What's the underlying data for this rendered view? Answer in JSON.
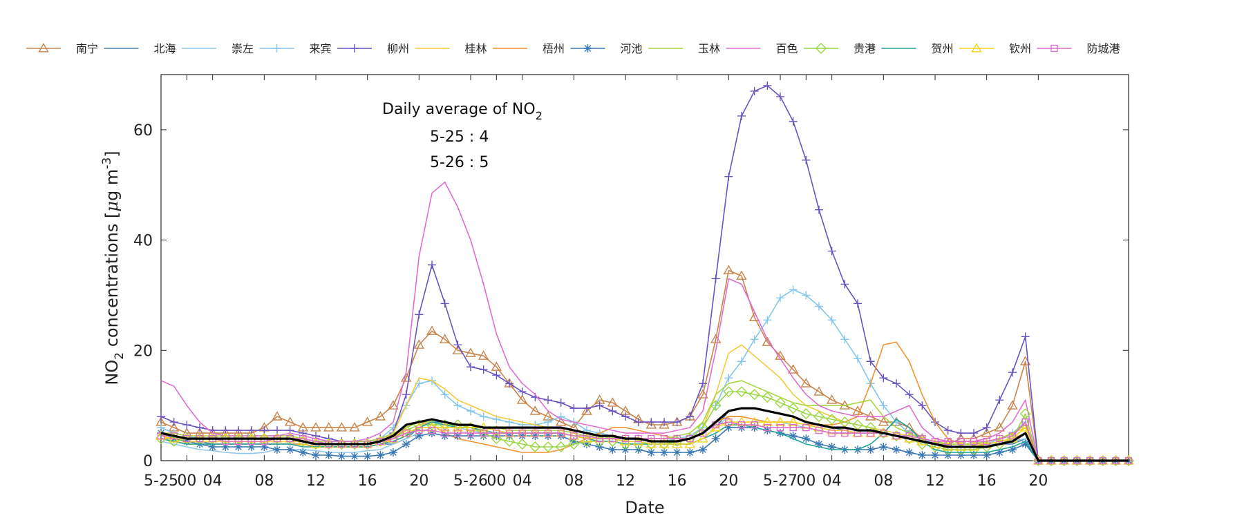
{
  "chart_data": {
    "type": "line",
    "title": "",
    "xlabel": "Date",
    "ylabel_main": "NO",
    "ylabel_sub": "2",
    "ylabel_rest": " concentrations [",
    "ylabel_mu": "μ",
    "ylabel_unit": "g m",
    "ylabel_sup": "-3",
    "ylabel_close": "]",
    "ylim": [
      0,
      70
    ],
    "yticks": [
      0,
      20,
      40,
      60
    ],
    "xlim": [
      0,
      75
    ],
    "xticks": [
      {
        "x": 0,
        "label": "5-25"
      },
      {
        "x": 2,
        "label": "00"
      },
      {
        "x": 4,
        "label": "04"
      },
      {
        "x": 8,
        "label": "08"
      },
      {
        "x": 12,
        "label": "12"
      },
      {
        "x": 16,
        "label": "16"
      },
      {
        "x": 20,
        "label": "20"
      },
      {
        "x": 24,
        "label": "5-26"
      },
      {
        "x": 26,
        "label": "00"
      },
      {
        "x": 28,
        "label": "04"
      },
      {
        "x": 32,
        "label": "08"
      },
      {
        "x": 36,
        "label": "12"
      },
      {
        "x": 40,
        "label": "16"
      },
      {
        "x": 44,
        "label": "20"
      },
      {
        "x": 48,
        "label": "5-27"
      },
      {
        "x": 50,
        "label": "00"
      },
      {
        "x": 52,
        "label": "04"
      },
      {
        "x": 56,
        "label": "08"
      },
      {
        "x": 60,
        "label": "12"
      },
      {
        "x": 64,
        "label": "16"
      },
      {
        "x": 68,
        "label": "20"
      }
    ],
    "annotation": {
      "line1_main": "Daily average of NO",
      "line1_sub": "2",
      "line2": "5-25 : 4",
      "line3": "5-26 : 5",
      "x": 23.5,
      "y": 63
    },
    "series": [
      {
        "name": "南宁",
        "color": "#c8844a",
        "marker": "triangle",
        "values": [
          7,
          6,
          5,
          5,
          5,
          5,
          5,
          5,
          6,
          8,
          7,
          6,
          6,
          6,
          6,
          6,
          7,
          8,
          10,
          15,
          21,
          23.5,
          22,
          20,
          19.5,
          19,
          17,
          14,
          11,
          9,
          8,
          7,
          6,
          9,
          11,
          10.5,
          9,
          7.5,
          6.5,
          6.5,
          7,
          8,
          12,
          22,
          34.5,
          33.5,
          26,
          21.5,
          19,
          16.5,
          14,
          12.5,
          11,
          10,
          9,
          8,
          7,
          7,
          6,
          4,
          3,
          3,
          4,
          4,
          5,
          6,
          10,
          18,
          0,
          0,
          0,
          0,
          0,
          0,
          0,
          0
        ]
      },
      {
        "name": "北海",
        "color": "#3a7fb0",
        "marker": "none",
        "values": [
          4,
          4,
          3.5,
          3.5,
          3,
          3,
          3,
          3,
          3,
          3,
          3,
          3,
          2.5,
          2.5,
          2.5,
          2.5,
          2.5,
          3,
          3,
          4,
          6,
          7,
          7,
          6,
          6,
          6,
          5.5,
          5,
          5,
          5,
          5,
          5,
          4.5,
          4,
          4,
          4,
          3.5,
          3.5,
          3,
          3,
          3,
          3,
          4,
          6,
          9,
          9.5,
          9.5,
          9,
          8.5,
          8,
          7,
          6.5,
          6,
          5.5,
          5,
          5,
          5,
          4.5,
          4,
          3.5,
          3,
          2.5,
          2.5,
          2.5,
          2.5,
          3,
          3,
          4,
          0,
          0,
          0,
          0,
          0,
          0,
          0,
          0
        ]
      },
      {
        "name": "崇左",
        "color": "#8fc6ea",
        "marker": "none",
        "values": [
          3.5,
          3,
          2.5,
          2,
          1.8,
          1.5,
          1.3,
          1.3,
          1.5,
          2,
          2,
          2,
          1.8,
          1.5,
          1.5,
          1.5,
          1.8,
          2,
          3,
          4,
          5,
          6,
          6,
          6,
          5.5,
          5,
          5,
          5,
          5,
          5,
          5,
          5,
          4.5,
          4,
          4,
          4,
          3.5,
          3.5,
          3,
          3,
          3,
          3,
          4,
          6,
          8,
          8,
          7.5,
          7,
          7,
          6.5,
          6,
          5.5,
          5,
          5,
          5,
          5,
          5,
          4.5,
          4,
          3.5,
          3,
          2.5,
          2.5,
          2.5,
          3,
          3,
          3.5,
          4,
          0,
          0,
          0,
          0,
          0,
          0,
          0,
          0
        ]
      },
      {
        "name": "来宾",
        "color": "#84c6ec",
        "marker": "plus",
        "values": [
          6,
          5,
          4.5,
          4,
          4,
          4,
          4,
          4,
          4,
          4,
          4,
          4,
          3.5,
          3.5,
          3.5,
          3.5,
          3.5,
          4,
          6,
          10,
          14,
          14.5,
          12,
          10,
          9,
          8,
          7.5,
          7,
          6.5,
          6.5,
          7,
          8,
          7,
          5.5,
          5,
          4.5,
          4,
          4,
          3.5,
          3.5,
          4,
          4.5,
          6,
          10,
          15,
          18,
          22,
          25.5,
          29.5,
          31,
          30,
          28,
          25.5,
          22,
          18.5,
          14,
          10,
          7,
          5,
          4,
          3,
          2.5,
          2.5,
          2.5,
          3,
          4,
          5,
          7,
          0,
          0,
          0,
          0,
          0,
          0,
          0,
          0
        ]
      },
      {
        "name": "柳州",
        "color": "#6a52c0",
        "marker": "plus",
        "values": [
          8,
          7,
          6.5,
          6,
          5.5,
          5.5,
          5.5,
          5.5,
          5.5,
          5.5,
          5.5,
          5,
          4.5,
          4,
          3.5,
          3.5,
          3.5,
          4,
          5,
          12,
          26.5,
          35.5,
          28.5,
          21,
          17,
          16.5,
          15.5,
          14,
          12.5,
          11.5,
          11,
          10.5,
          9.5,
          9.5,
          10,
          9,
          8,
          7,
          7,
          7,
          7,
          8,
          14,
          33,
          51.5,
          62.5,
          67,
          68,
          66,
          61.5,
          54.5,
          45.5,
          38,
          32,
          28.5,
          18,
          15,
          14,
          12,
          10,
          7,
          5.5,
          5,
          5,
          6,
          11,
          16,
          22.5,
          0,
          0,
          0,
          0,
          0,
          0,
          0,
          0
        ]
      },
      {
        "name": "桂林",
        "color": "#f5c83a",
        "marker": "none",
        "values": [
          4,
          4,
          3.5,
          3.5,
          3.5,
          3.5,
          3.5,
          3.5,
          3.5,
          3.5,
          3.5,
          3.5,
          3,
          3,
          3,
          3,
          3,
          3.5,
          5,
          10,
          15,
          14.5,
          13,
          11,
          10,
          9,
          8,
          7.5,
          7,
          6.5,
          6,
          6,
          5.5,
          5,
          4.5,
          4,
          4,
          4,
          3.5,
          3.5,
          3.5,
          4,
          6,
          12,
          19.5,
          21,
          19,
          17,
          15,
          12,
          10,
          9,
          8,
          7,
          6.5,
          6,
          5.5,
          5,
          4.5,
          4,
          3.5,
          3,
          3,
          3,
          3.5,
          4,
          5,
          6,
          0,
          0,
          0,
          0,
          0,
          0,
          0,
          0
        ]
      },
      {
        "name": "梧州",
        "color": "#f0922e",
        "marker": "none",
        "values": [
          4,
          3.5,
          3,
          3,
          3,
          3,
          3,
          3,
          3,
          3,
          3,
          3,
          2.5,
          2.5,
          2.5,
          2.5,
          2.5,
          3,
          4,
          6,
          7,
          6.5,
          5,
          4,
          3.5,
          3,
          2.5,
          2,
          1.5,
          1.5,
          1.5,
          2,
          3,
          4,
          5,
          6,
          6,
          5.5,
          5,
          4.5,
          4,
          4,
          5,
          7,
          8,
          8,
          7.5,
          7,
          7,
          7,
          6.5,
          6.5,
          6.5,
          7,
          8,
          14,
          21,
          21.5,
          18,
          12,
          7,
          4,
          3,
          3,
          3,
          3.5,
          4,
          5,
          0,
          0,
          0,
          0,
          0,
          0,
          0,
          0
        ]
      },
      {
        "name": "河池",
        "color": "#3a78b5",
        "marker": "asterisk",
        "values": [
          5,
          4,
          3.5,
          3,
          2.5,
          2.5,
          2.5,
          2.5,
          2.5,
          2,
          2,
          1.5,
          1,
          1,
          0.8,
          0.8,
          0.8,
          1,
          1.5,
          3,
          4.5,
          5,
          4.5,
          4.5,
          4.5,
          4.5,
          4.5,
          4.5,
          4.5,
          4.5,
          4.5,
          4.5,
          3.5,
          3,
          2.5,
          2,
          2,
          2,
          1.5,
          1.5,
          1.5,
          1.5,
          2,
          4,
          6,
          6,
          6,
          5.5,
          5,
          4.5,
          4,
          3,
          2.5,
          2,
          2,
          2,
          2.5,
          2,
          1.5,
          1,
          1,
          1,
          1,
          1,
          1,
          1.5,
          2,
          3,
          0,
          0,
          0,
          0,
          0,
          0,
          0,
          0
        ]
      },
      {
        "name": "玉林",
        "color": "#a5d63c",
        "marker": "none",
        "values": [
          5,
          5,
          4.5,
          4.5,
          4.5,
          4.5,
          4.5,
          4.5,
          4.5,
          4.5,
          4.5,
          4,
          3.5,
          3.5,
          3.5,
          3.5,
          3.5,
          4,
          5,
          6,
          7,
          7,
          6.5,
          6.5,
          6.5,
          6,
          6,
          5.5,
          5.5,
          5.5,
          5.5,
          5.5,
          5,
          4.5,
          4.5,
          4,
          4,
          4,
          4,
          4,
          4.5,
          5,
          7,
          12,
          14,
          14.5,
          13.5,
          12.5,
          11.5,
          10.5,
          10,
          10,
          10,
          10,
          10.5,
          11,
          8,
          6,
          5,
          4,
          3.5,
          3,
          3,
          3,
          3.5,
          4,
          5,
          6.5,
          0,
          0,
          0,
          0,
          0,
          0,
          0,
          0
        ]
      },
      {
        "name": "百色",
        "color": "#e06dd0",
        "marker": "none",
        "values": [
          14.5,
          13.5,
          10,
          7,
          5,
          4.5,
          4.5,
          4.5,
          4.5,
          4.5,
          5,
          4.5,
          4,
          3.5,
          3.5,
          3.5,
          4,
          5,
          7,
          16,
          37,
          48.5,
          50.5,
          46,
          40,
          32,
          23,
          17,
          14,
          12,
          9,
          7.5,
          7,
          6.5,
          6,
          5.5,
          5,
          5,
          5,
          5,
          5.5,
          6,
          9,
          20,
          33,
          32,
          27,
          22,
          18.5,
          15,
          12,
          10,
          9,
          8.5,
          8,
          8,
          8,
          9,
          10,
          6,
          4,
          3.5,
          3.5,
          3.5,
          4,
          5,
          7,
          11,
          0,
          0,
          0,
          0,
          0,
          0,
          0,
          0
        ]
      },
      {
        "name": "贵港",
        "color": "#98d642",
        "marker": "diamond",
        "values": [
          4,
          3.5,
          4,
          4,
          4,
          4,
          4,
          4,
          4,
          4,
          4,
          3.5,
          3,
          3,
          3,
          3,
          3,
          3.5,
          4,
          5.5,
          6.5,
          6.5,
          6.5,
          6.5,
          6,
          5,
          4,
          3.5,
          3,
          2.5,
          2.5,
          2.5,
          3,
          3.5,
          3.5,
          3.5,
          3,
          3,
          3,
          3,
          3.5,
          4,
          6,
          10,
          12.5,
          12.5,
          12,
          11.5,
          10.5,
          9.5,
          8.5,
          8,
          7.5,
          7,
          6.5,
          6,
          5,
          4.5,
          4,
          3,
          2.5,
          2,
          2,
          2,
          2.5,
          3,
          4,
          8.5,
          0,
          0,
          0,
          0,
          0,
          0,
          0,
          0
        ]
      },
      {
        "name": "贺州",
        "color": "#1fa39a",
        "marker": "none",
        "values": [
          4,
          3.5,
          3,
          3,
          3,
          3,
          3,
          3,
          3,
          3,
          3,
          2.5,
          2.5,
          2.5,
          2.5,
          2.5,
          2.5,
          3,
          3.5,
          4.5,
          6,
          7,
          6.5,
          6,
          6,
          5.5,
          5,
          5,
          5,
          5,
          5,
          5,
          4.5,
          4,
          3.5,
          3.5,
          3,
          3,
          3,
          3,
          3,
          3,
          4,
          5,
          6.5,
          6.5,
          6,
          5.5,
          5,
          4,
          3,
          2.5,
          2,
          2,
          2,
          3,
          5,
          7.5,
          6,
          3.5,
          2,
          1.5,
          1.5,
          1.5,
          1.5,
          2,
          2.5,
          3.5,
          0,
          0,
          0,
          0,
          0,
          0,
          0,
          0
        ]
      },
      {
        "name": "钦州",
        "color": "#f5d21e",
        "marker": "triangle",
        "values": [
          4.5,
          4,
          4,
          4,
          4,
          4,
          4,
          4,
          4,
          4,
          4,
          3.5,
          3,
          3,
          3,
          3,
          3,
          3.5,
          4,
          5,
          6,
          6,
          6,
          6,
          6,
          6,
          5.5,
          5,
          5,
          5,
          5,
          5,
          4.5,
          4,
          4,
          4,
          3.5,
          3.5,
          3,
          3,
          3,
          3,
          4,
          6,
          7,
          7,
          7,
          7,
          7,
          7,
          6.5,
          6,
          5.5,
          5.5,
          5,
          5,
          5,
          4.5,
          4,
          3.5,
          3,
          2.5,
          2.5,
          2.5,
          3,
          3.5,
          4,
          6,
          0,
          0,
          0,
          0,
          0,
          0,
          0,
          0
        ]
      },
      {
        "name": "防城港",
        "color": "#dc6cc8",
        "marker": "square",
        "values": [
          4.5,
          4.5,
          4,
          4,
          4,
          3.5,
          3.5,
          3.5,
          3.5,
          4,
          4,
          4,
          3.5,
          3,
          3,
          3,
          3,
          3.5,
          4,
          5,
          5.5,
          5.5,
          5,
          5,
          5,
          5,
          5,
          5,
          5,
          5,
          5,
          5,
          4.5,
          4.5,
          4,
          4,
          4,
          4,
          4,
          4,
          4,
          4,
          5,
          6.5,
          7,
          6.5,
          6.5,
          6,
          6,
          6,
          6,
          5.5,
          5,
          5,
          5,
          5,
          5,
          4.5,
          4.5,
          4,
          3.5,
          3.5,
          3.5,
          3.5,
          3.5,
          4,
          4.5,
          7,
          0,
          0,
          0,
          0,
          0,
          0,
          0,
          0
        ]
      },
      {
        "name": "average",
        "color": "#000000",
        "marker": "none",
        "legend": false,
        "width": 3.2,
        "values": [
          5,
          4.5,
          4,
          4,
          4,
          4,
          4,
          4,
          4,
          4,
          4,
          3.5,
          3,
          3,
          3,
          3,
          3,
          3.5,
          4.5,
          6.5,
          7,
          7.5,
          7,
          6.5,
          6.5,
          6,
          6,
          6,
          6,
          6,
          6,
          6,
          5.5,
          5,
          4.5,
          4.5,
          4,
          4,
          3.5,
          3.5,
          3.5,
          4,
          5,
          7,
          9,
          9.5,
          9.5,
          9,
          8.5,
          8,
          7,
          6.5,
          6,
          6,
          5.5,
          5.5,
          5,
          4.5,
          4,
          3.5,
          3,
          2.5,
          2.5,
          2.5,
          2.5,
          3,
          3.5,
          5,
          0,
          0,
          0,
          0,
          0,
          0,
          0,
          0
        ]
      }
    ]
  }
}
